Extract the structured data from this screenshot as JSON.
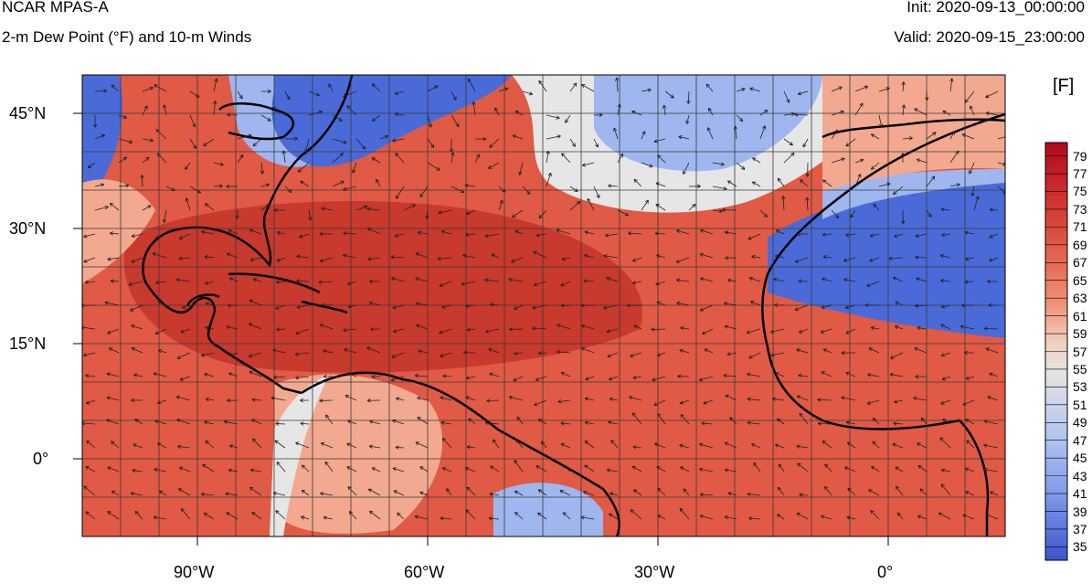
{
  "header": {
    "model": "NCAR MPAS-A",
    "field": "2-m Dew Point (°F) and 10-m Winds",
    "init": "Init: 2020-09-13_00:00:00",
    "valid": "Valid: 2020-09-15_23:00:00"
  },
  "map": {
    "lon_range": [
      -105,
      15
    ],
    "lat_range": [
      -10,
      50
    ],
    "lon_ticks": [
      "90°W",
      "60°W",
      "30°W",
      "0°"
    ],
    "lat_ticks": [
      "45°N",
      "30°N",
      "15°N",
      "0°"
    ],
    "colors": {
      "warm": "#e05a45",
      "hot": "#c8392e",
      "mild": "#f2a98f",
      "neutral": "#e6e6e6",
      "cool": "#9fb6ee",
      "cold": "#4a6ad8",
      "coast": "#000000",
      "grid": "#3a3a3a"
    }
  },
  "colorbar": {
    "units": "[F]",
    "labels": [
      "79",
      "77",
      "75",
      "73",
      "71",
      "69",
      "67",
      "65",
      "63",
      "61",
      "59",
      "57",
      "55",
      "53",
      "51",
      "49",
      "47",
      "45",
      "43",
      "41",
      "39",
      "37",
      "35"
    ]
  }
}
